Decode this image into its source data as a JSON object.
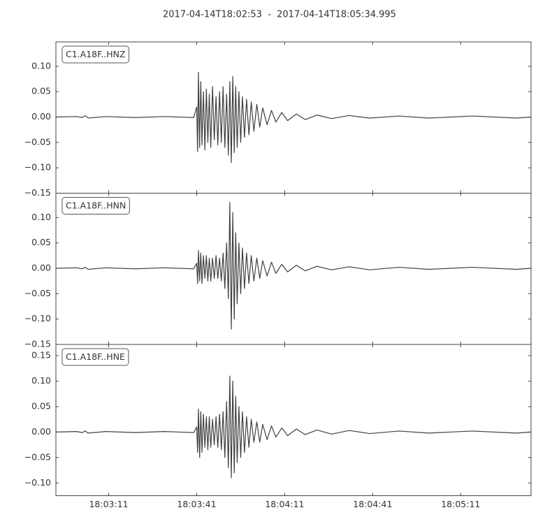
{
  "title": "2017-04-14T18:02:53  -  2017-04-14T18:05:34.995",
  "chart_data": [
    {
      "type": "line",
      "x": [
        "18:02:53",
        "18:03:00",
        "18:03:02",
        "18:03:03",
        "18:03:04",
        "18:03:10",
        "18:03:20",
        "18:03:30",
        "18:03:40",
        "18:03:41",
        "18:03:41.3",
        "18:03:41.6",
        "18:03:42",
        "18:03:42.4",
        "18:03:42.8",
        "18:03:43.3",
        "18:03:43.8",
        "18:03:44.3",
        "18:03:44.8",
        "18:03:45.3",
        "18:03:45.8",
        "18:03:46.4",
        "18:03:47",
        "18:03:47.6",
        "18:03:48.2",
        "18:03:48.8",
        "18:03:49.4",
        "18:03:50",
        "18:03:50.6",
        "18:03:51.2",
        "18:03:51.8",
        "18:03:52.3",
        "18:03:52.8",
        "18:03:53.3",
        "18:03:53.8",
        "18:03:54.3",
        "18:03:54.8",
        "18:03:55.4",
        "18:03:56",
        "18:03:56.6",
        "18:03:57.3",
        "18:03:58",
        "18:03:58.8",
        "18:03:59.6",
        "18:04:00.5",
        "18:04:01.5",
        "18:04:02.5",
        "18:04:03.5",
        "18:04:05",
        "18:04:06.5",
        "18:04:08",
        "18:04:10",
        "18:04:12",
        "18:04:15",
        "18:04:18",
        "18:04:22",
        "18:04:27",
        "18:04:33",
        "18:04:40",
        "18:04:50",
        "18:05:00",
        "18:05:15",
        "18:05:30",
        "18:05:34.9"
      ],
      "series": [
        {
          "name": "C1.A18F..HNZ",
          "color": "#404040",
          "values": [
            0,
            0.001,
            -0.001,
            0.003,
            -0.002,
            0.001,
            -0.001,
            0.001,
            -0.001,
            0.02,
            -0.068,
            0.088,
            -0.06,
            0.07,
            -0.055,
            0.05,
            -0.065,
            0.055,
            -0.05,
            0.045,
            -0.06,
            0.06,
            -0.045,
            0.04,
            -0.055,
            0.05,
            -0.05,
            0.06,
            -0.06,
            0.045,
            -0.075,
            0.07,
            -0.09,
            0.08,
            -0.07,
            0.06,
            -0.06,
            0.05,
            -0.05,
            0.04,
            -0.04,
            0.035,
            -0.035,
            0.03,
            -0.028,
            0.025,
            -0.02,
            0.018,
            -0.015,
            0.013,
            -0.01,
            0.009,
            -0.007,
            0.006,
            -0.005,
            0.004,
            -0.003,
            0.003,
            -0.002,
            0.002,
            -0.002,
            0.002,
            -0.002,
            0
          ]
        }
      ],
      "legend": "upper left",
      "ylim": [
        -0.15,
        0.148
      ],
      "yticks": [
        {
          "value": -0.15,
          "label": "−0.15"
        },
        {
          "value": -0.1,
          "label": "−0.10"
        },
        {
          "value": -0.05,
          "label": "−0.05"
        },
        {
          "value": 0,
          "label": "0.00"
        },
        {
          "value": 0.05,
          "label": "0.05"
        },
        {
          "value": 0.1,
          "label": "0.10"
        }
      ]
    },
    {
      "type": "line",
      "x": [
        "18:02:53",
        "18:03:00",
        "18:03:02",
        "18:03:03",
        "18:03:04",
        "18:03:10",
        "18:03:20",
        "18:03:30",
        "18:03:40",
        "18:03:41",
        "18:03:41.3",
        "18:03:41.6",
        "18:03:42",
        "18:03:42.4",
        "18:03:42.8",
        "18:03:43.3",
        "18:03:43.8",
        "18:03:44.3",
        "18:03:44.8",
        "18:03:45.3",
        "18:03:45.8",
        "18:03:46.4",
        "18:03:47",
        "18:03:47.6",
        "18:03:48.2",
        "18:03:48.8",
        "18:03:49.4",
        "18:03:50",
        "18:03:50.6",
        "18:03:51.2",
        "18:03:51.8",
        "18:03:52.3",
        "18:03:52.8",
        "18:03:53.3",
        "18:03:53.8",
        "18:03:54.3",
        "18:03:54.8",
        "18:03:55.4",
        "18:03:56",
        "18:03:56.6",
        "18:03:57.3",
        "18:03:58",
        "18:03:58.8",
        "18:03:59.6",
        "18:04:00.5",
        "18:04:01.5",
        "18:04:02.5",
        "18:04:03.5",
        "18:04:05",
        "18:04:06.5",
        "18:04:08",
        "18:04:10",
        "18:04:12",
        "18:04:15",
        "18:04:18",
        "18:04:22",
        "18:04:27",
        "18:04:33",
        "18:04:40",
        "18:04:50",
        "18:05:00",
        "18:05:15",
        "18:05:30",
        "18:05:34.9"
      ],
      "series": [
        {
          "name": "C1.A18F..HNN",
          "color": "#404040",
          "values": [
            0,
            0.001,
            -0.001,
            0.002,
            -0.002,
            0.001,
            -0.001,
            0.001,
            -0.001,
            0.01,
            -0.03,
            0.035,
            -0.025,
            0.03,
            -0.03,
            0.025,
            -0.02,
            0.025,
            -0.025,
            0.02,
            -0.025,
            0.02,
            -0.02,
            0.025,
            -0.02,
            0.02,
            -0.025,
            0.03,
            -0.04,
            0.05,
            -0.06,
            0.13,
            -0.12,
            0.11,
            -0.1,
            0.07,
            -0.07,
            0.05,
            -0.05,
            0.04,
            -0.04,
            0.03,
            -0.03,
            0.025,
            -0.025,
            0.02,
            -0.02,
            0.015,
            -0.015,
            0.012,
            -0.01,
            0.008,
            -0.007,
            0.006,
            -0.005,
            0.004,
            -0.003,
            0.003,
            -0.003,
            0.002,
            -0.002,
            0.002,
            -0.002,
            0
          ]
        }
      ],
      "legend": "upper left",
      "ylim": [
        -0.15,
        0.148
      ],
      "yticks": [
        {
          "value": -0.15,
          "label": "−0.15"
        },
        {
          "value": -0.1,
          "label": "−0.10"
        },
        {
          "value": -0.05,
          "label": "−0.05"
        },
        {
          "value": 0,
          "label": "0.00"
        },
        {
          "value": 0.05,
          "label": "0.05"
        },
        {
          "value": 0.1,
          "label": "0.10"
        }
      ]
    },
    {
      "type": "line",
      "x": [
        "18:02:53",
        "18:03:00",
        "18:03:02",
        "18:03:03",
        "18:03:04",
        "18:03:10",
        "18:03:20",
        "18:03:30",
        "18:03:40",
        "18:03:41",
        "18:03:41.3",
        "18:03:41.6",
        "18:03:42",
        "18:03:42.4",
        "18:03:42.8",
        "18:03:43.3",
        "18:03:43.8",
        "18:03:44.3",
        "18:03:44.8",
        "18:03:45.3",
        "18:03:45.8",
        "18:03:46.4",
        "18:03:47",
        "18:03:47.6",
        "18:03:48.2",
        "18:03:48.8",
        "18:03:49.4",
        "18:03:50",
        "18:03:50.6",
        "18:03:51.2",
        "18:03:51.8",
        "18:03:52.3",
        "18:03:52.8",
        "18:03:53.3",
        "18:03:53.8",
        "18:03:54.3",
        "18:03:54.8",
        "18:03:55.4",
        "18:03:56",
        "18:03:56.6",
        "18:03:57.3",
        "18:03:58",
        "18:03:58.8",
        "18:03:59.6",
        "18:04:00.5",
        "18:04:01.5",
        "18:04:02.5",
        "18:04:03.5",
        "18:04:05",
        "18:04:06.5",
        "18:04:08",
        "18:04:10",
        "18:04:12",
        "18:04:15",
        "18:04:18",
        "18:04:22",
        "18:04:27",
        "18:04:33",
        "18:04:40",
        "18:04:50",
        "18:05:00",
        "18:05:15",
        "18:05:30",
        "18:05:34.9"
      ],
      "series": [
        {
          "name": "C1.A18F..HNE",
          "color": "#404040",
          "values": [
            0,
            0.001,
            -0.001,
            0.002,
            -0.002,
            0.001,
            -0.001,
            0.001,
            -0.001,
            0.01,
            -0.04,
            0.045,
            -0.05,
            0.04,
            -0.04,
            0.035,
            -0.03,
            0.03,
            -0.035,
            0.03,
            -0.03,
            0.025,
            -0.025,
            0.03,
            -0.03,
            0.035,
            -0.035,
            0.04,
            -0.05,
            0.06,
            -0.07,
            0.11,
            -0.09,
            0.1,
            -0.08,
            0.07,
            -0.06,
            0.05,
            -0.05,
            0.04,
            -0.04,
            0.03,
            -0.03,
            0.025,
            -0.02,
            0.02,
            -0.02,
            0.015,
            -0.015,
            0.012,
            -0.01,
            0.008,
            -0.007,
            0.006,
            -0.005,
            0.004,
            -0.004,
            0.003,
            -0.003,
            0.002,
            -0.002,
            0.002,
            -0.002,
            0
          ]
        }
      ],
      "legend": "upper left",
      "ylim": [
        -0.125,
        0.172
      ],
      "yticks": [
        {
          "value": -0.1,
          "label": "−0.10"
        },
        {
          "value": -0.05,
          "label": "−0.05"
        },
        {
          "value": 0,
          "label": "0.00"
        },
        {
          "value": 0.05,
          "label": "0.05"
        },
        {
          "value": 0.1,
          "label": "0.10"
        },
        {
          "value": 0.15,
          "label": "0.15"
        }
      ],
      "xlim": [
        "18:02:53",
        "18:05:34.995"
      ],
      "xticks": [
        "18:03:11",
        "18:03:41",
        "18:04:11",
        "18:04:41",
        "18:05:11"
      ]
    }
  ]
}
